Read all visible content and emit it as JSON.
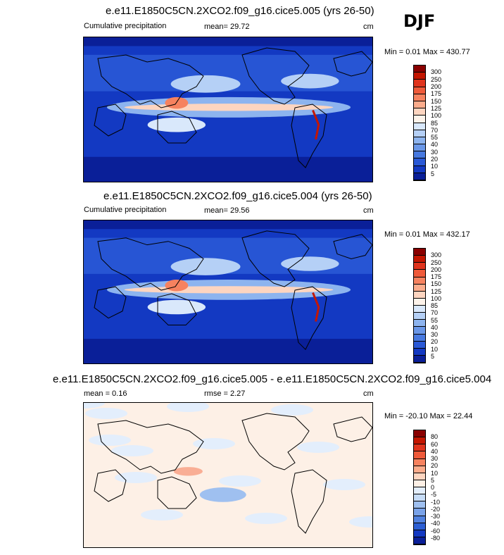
{
  "season": "DJF",
  "panels": [
    {
      "title": "e.e11.E1850C5CN.2XCO2.f09_g16.cice5.005 (yrs 26-50)",
      "left_label": "Cumulative precipitation",
      "center_label": "mean=  29.72",
      "unit": "cm",
      "minmax": "Min =   0.01 Max = 430.77",
      "cbar_labels": [
        "300",
        "250",
        "200",
        "175",
        "150",
        "125",
        "100",
        "85",
        "70",
        "55",
        "40",
        "30",
        "20",
        "10",
        "5"
      ],
      "cbar_colors": [
        "#8a0000",
        "#c41600",
        "#e0341d",
        "#ef5a3a",
        "#f6825f",
        "#fbac8c",
        "#fdd5c0",
        "#fdf3ea",
        "#d9e8fb",
        "#b5d0f6",
        "#8db4ef",
        "#6a97e8",
        "#4779e0",
        "#2a59d6",
        "#1339c2",
        "#0a1f98"
      ],
      "type": "precip"
    },
    {
      "title": "e.e11.E1850C5CN.2XCO2.f09_g16.cice5.004 (yrs 26-50)",
      "left_label": "Cumulative precipitation",
      "center_label": "mean=  29.56",
      "unit": "cm",
      "minmax": "Min =   0.01 Max = 432.17",
      "cbar_labels": [
        "300",
        "250",
        "200",
        "175",
        "150",
        "125",
        "100",
        "85",
        "70",
        "55",
        "40",
        "30",
        "20",
        "10",
        "5"
      ],
      "cbar_colors": [
        "#8a0000",
        "#c41600",
        "#e0341d",
        "#ef5a3a",
        "#f6825f",
        "#fbac8c",
        "#fdd5c0",
        "#fdf3ea",
        "#d9e8fb",
        "#b5d0f6",
        "#8db4ef",
        "#6a97e8",
        "#4779e0",
        "#2a59d6",
        "#1339c2",
        "#0a1f98"
      ],
      "type": "precip"
    },
    {
      "title": "e.e11.E1850C5CN.2XCO2.f09_g16.cice5.005 - e.e11.E1850C5CN.2XCO2.f09_g16.cice5.004",
      "left_label": "mean =   0.16",
      "center_label": "rmse =   2.27",
      "unit": "cm",
      "minmax": "Min = -20.10 Max =  22.44",
      "cbar_labels": [
        "80",
        "60",
        "40",
        "30",
        "20",
        "10",
        "5",
        "0",
        "-5",
        "-10",
        "-20",
        "-30",
        "-40",
        "-60",
        "-80"
      ],
      "cbar_colors": [
        "#8a0000",
        "#c41600",
        "#e0341d",
        "#ef5a3a",
        "#f6825f",
        "#fbac8c",
        "#fdd5c0",
        "#fdf0e6",
        "#e3eefc",
        "#c6dcf7",
        "#9fc0f0",
        "#7aa3e9",
        "#5182e0",
        "#2c5fd4",
        "#1339c2",
        "#0a1f98"
      ],
      "type": "diff"
    }
  ]
}
